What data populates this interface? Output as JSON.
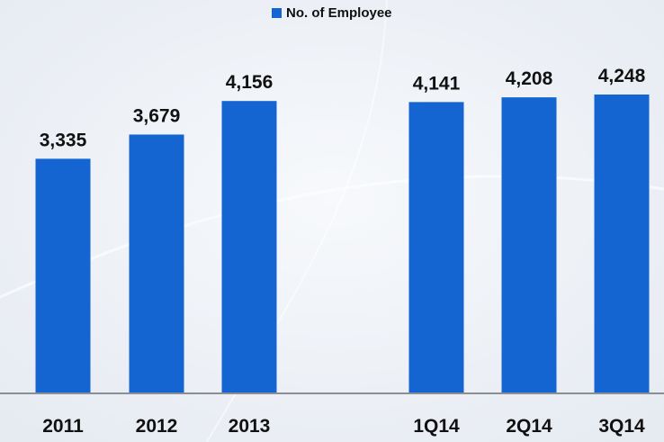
{
  "chart_data": {
    "type": "bar",
    "categories": [
      "2011",
      "2012",
      "2013",
      "1Q14",
      "2Q14",
      "3Q14"
    ],
    "series": [
      {
        "name": "No. of Employee",
        "values": [
          3335,
          3679,
          4156,
          4141,
          4208,
          4248
        ],
        "value_labels": [
          "3,335",
          "3,679",
          "4,156",
          "4,141",
          "4,208",
          "4,248"
        ],
        "color": "#1464d2"
      }
    ],
    "legend_position": "top-center",
    "grid": false,
    "ylim": [
      0,
      4500
    ]
  },
  "colors": {
    "bar": "#1464d2",
    "text": "#111111",
    "axis": "#8a8f96",
    "background": "#eef2f7"
  }
}
